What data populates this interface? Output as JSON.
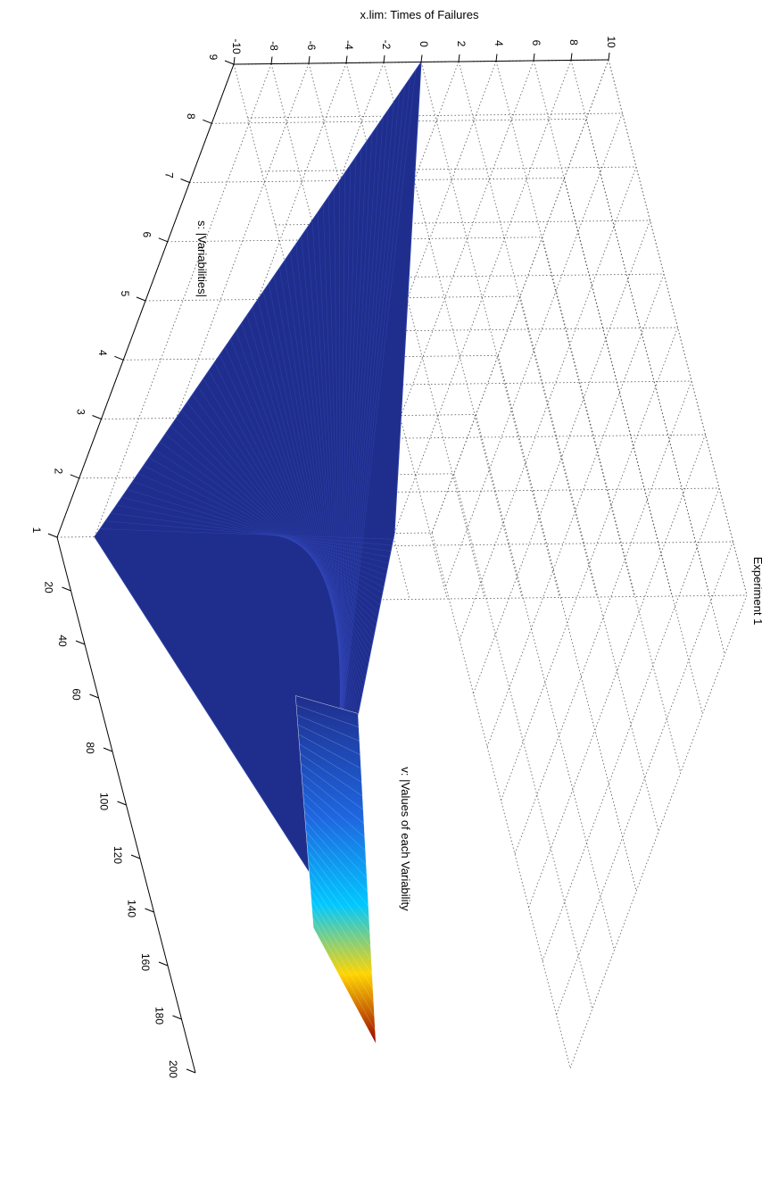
{
  "chart_data": {
    "type": "surface",
    "title": "Experiment 1",
    "xlabel": "x.lim: Times of Failures",
    "ylabel": "s: |Variabilities|",
    "zlabel": "v: |Values of each Variability",
    "x_ticks": [
      "-10",
      "-8",
      "-6",
      "-4",
      "-2",
      "0",
      "2",
      "4",
      "6",
      "8",
      "10"
    ],
    "y_ticks": [
      "9",
      "8",
      "7",
      "6",
      "5",
      "4",
      "3",
      "2",
      "1"
    ],
    "z_ticks": [
      "20",
      "40",
      "60",
      "80",
      "100",
      "120",
      "140",
      "160",
      "180",
      "200"
    ],
    "xlim": [
      -10,
      10
    ],
    "ylim": [
      1,
      9
    ],
    "zlim": [
      0,
      200
    ],
    "grid": true,
    "colormap": "jet",
    "colors": {
      "low": "#0a1f8f",
      "surface_main": "#1f2e8c",
      "mid": "#00c8ff",
      "high": "#ffd400",
      "peak": "#9b0000"
    },
    "surface_description_points": [
      {
        "x": 0,
        "s": 9,
        "v": 0
      },
      {
        "x": -8,
        "s": 1,
        "v": 0
      },
      {
        "x": 8,
        "s": 1,
        "v": 0
      },
      {
        "x": 0,
        "s": 1,
        "v": 190
      }
    ]
  }
}
